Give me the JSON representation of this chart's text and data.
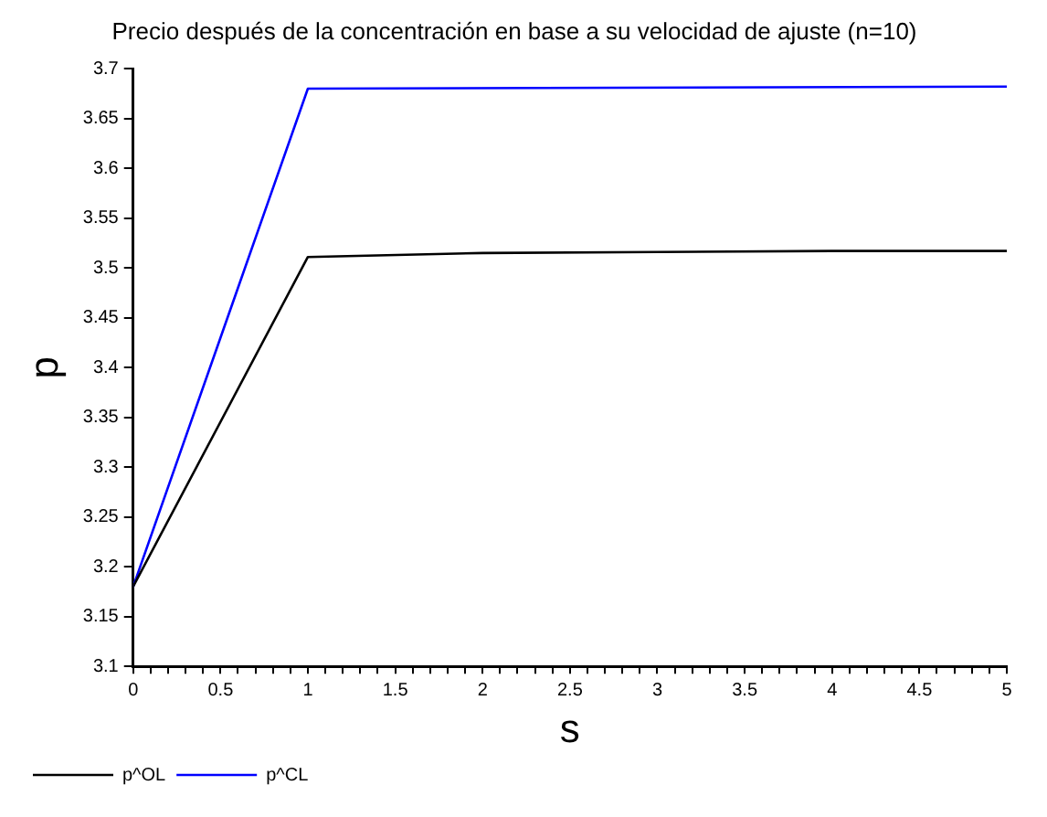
{
  "chart_data": {
    "type": "line",
    "title": "Precio después de la concentración en base a su velocidad de ajuste (n=10)",
    "xlabel": "s",
    "ylabel": "p",
    "series": [
      {
        "name": "p^OL",
        "color": "#000000",
        "x": [
          0,
          1,
          2,
          3,
          4,
          5
        ],
        "values": [
          3.18,
          3.511,
          3.515,
          3.516,
          3.517,
          3.517
        ]
      },
      {
        "name": "p^CL",
        "color": "#0000ff",
        "x": [
          0,
          1,
          5
        ],
        "values": [
          3.18,
          3.68,
          3.682
        ]
      }
    ],
    "xlim": [
      0,
      5
    ],
    "xticks": [
      0,
      {
        "value": 0.1,
        "label": null
      },
      {
        "value": 0.2,
        "label": null
      },
      {
        "value": 0.3,
        "label": null
      },
      {
        "value": 0.4,
        "label": null
      },
      0.5,
      {
        "value": 0.6,
        "label": null
      },
      {
        "value": 0.7,
        "label": null
      },
      {
        "value": 0.8,
        "label": null
      },
      {
        "value": 0.9,
        "label": null
      },
      1,
      {
        "value": 1.1,
        "label": null
      },
      {
        "value": 1.2,
        "label": null
      },
      {
        "value": 1.3,
        "label": null
      },
      {
        "value": 1.4,
        "label": null
      },
      1.5,
      {
        "value": 1.6,
        "label": null
      },
      {
        "value": 1.7,
        "label": null
      },
      {
        "value": 1.8,
        "label": null
      },
      {
        "value": 1.9,
        "label": null
      },
      2,
      {
        "value": 2.1,
        "label": null
      },
      {
        "value": 2.2,
        "label": null
      },
      {
        "value": 2.3,
        "label": null
      },
      {
        "value": 2.4,
        "label": null
      },
      2.5,
      {
        "value": 2.6,
        "label": null
      },
      {
        "value": 2.7,
        "label": null
      },
      {
        "value": 2.8,
        "label": null
      },
      {
        "value": 2.9,
        "label": null
      },
      3,
      {
        "value": 3.1,
        "label": null
      },
      {
        "value": 3.2,
        "label": null
      },
      {
        "value": 3.3,
        "label": null
      },
      {
        "value": 3.4,
        "label": null
      },
      3.5,
      {
        "value": 3.6,
        "label": null
      },
      {
        "value": 3.7,
        "label": null
      },
      {
        "value": 3.8,
        "label": null
      },
      {
        "value": 3.9,
        "label": null
      },
      4,
      {
        "value": 4.1,
        "label": null
      },
      {
        "value": 4.2,
        "label": null
      },
      {
        "value": 4.3,
        "label": null
      },
      {
        "value": 4.4,
        "label": null
      },
      4.5,
      {
        "value": 4.6,
        "label": null
      },
      {
        "value": 4.7,
        "label": null
      },
      {
        "value": 4.8,
        "label": null
      },
      {
        "value": 4.9,
        "label": null
      },
      5
    ],
    "ylim": [
      3.1,
      3.7
    ],
    "yticks": [
      3.1,
      3.15,
      3.2,
      3.25,
      3.3,
      3.35,
      3.4,
      3.45,
      3.5,
      3.55,
      3.6,
      3.65,
      3.7
    ],
    "grid": false,
    "legend": "bottom left",
    "marker": "none",
    "line_style": "solid"
  }
}
